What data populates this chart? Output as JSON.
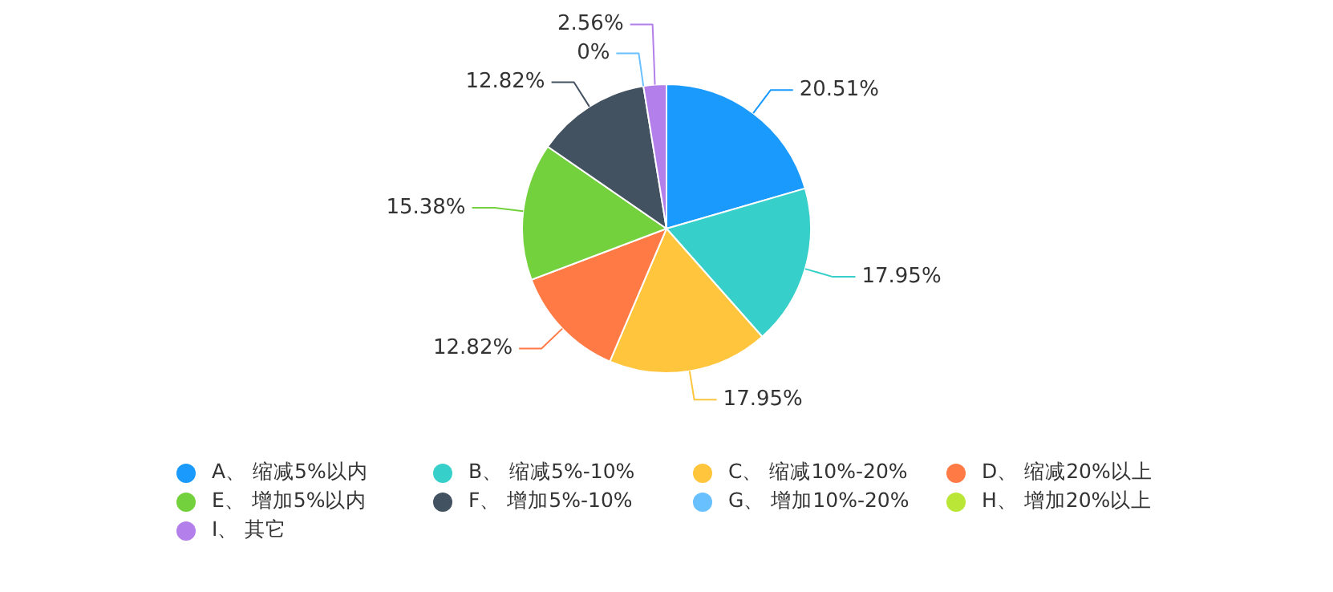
{
  "chart_data": {
    "type": "pie",
    "categories": [
      "A、 缩减5%以内",
      "B、 缩减5%-10%",
      "C、 缩减10%-20%",
      "D、 缩减20%以上",
      "E、 增加5%以内",
      "F、 增加5%-10%",
      "G、 增加10%-20%",
      "H、 增加20%以上",
      "I、 其它"
    ],
    "values": [
      20.51,
      17.95,
      17.95,
      12.82,
      15.38,
      12.82,
      0,
      0,
      2.56
    ],
    "value_labels": [
      "20.51%",
      "17.95%",
      "17.95%",
      "12.82%",
      "15.38%",
      "12.82%",
      "0%",
      null,
      "2.56%"
    ],
    "colors": [
      "#1a9afc",
      "#36cfc9",
      "#ffc53d",
      "#ff7a45",
      "#73d13d",
      "#435260",
      "#69c0ff",
      "#bae637",
      "#b37feb"
    ],
    "legend": "bottom"
  }
}
